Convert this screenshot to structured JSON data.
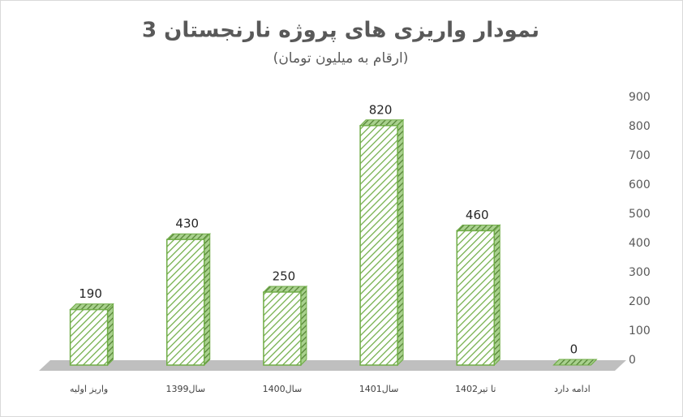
{
  "chart_data": {
    "type": "bar",
    "title": "نمودار واریزی های پروژه نارنجستان 3",
    "subtitle": "(ارقام به میلیون تومان)",
    "categories": [
      "واریز اولیه",
      "سال1399",
      "سال1400",
      "سال1401",
      "تا تیر1402",
      "ادامه دارد"
    ],
    "values": [
      190,
      430,
      250,
      820,
      460,
      0
    ],
    "color": "#70ad47",
    "ylim": [
      0,
      900
    ],
    "yticks": [
      0,
      100,
      200,
      300,
      400,
      500,
      600,
      700,
      800,
      900
    ],
    "axis_side": "right",
    "grid": false
  }
}
